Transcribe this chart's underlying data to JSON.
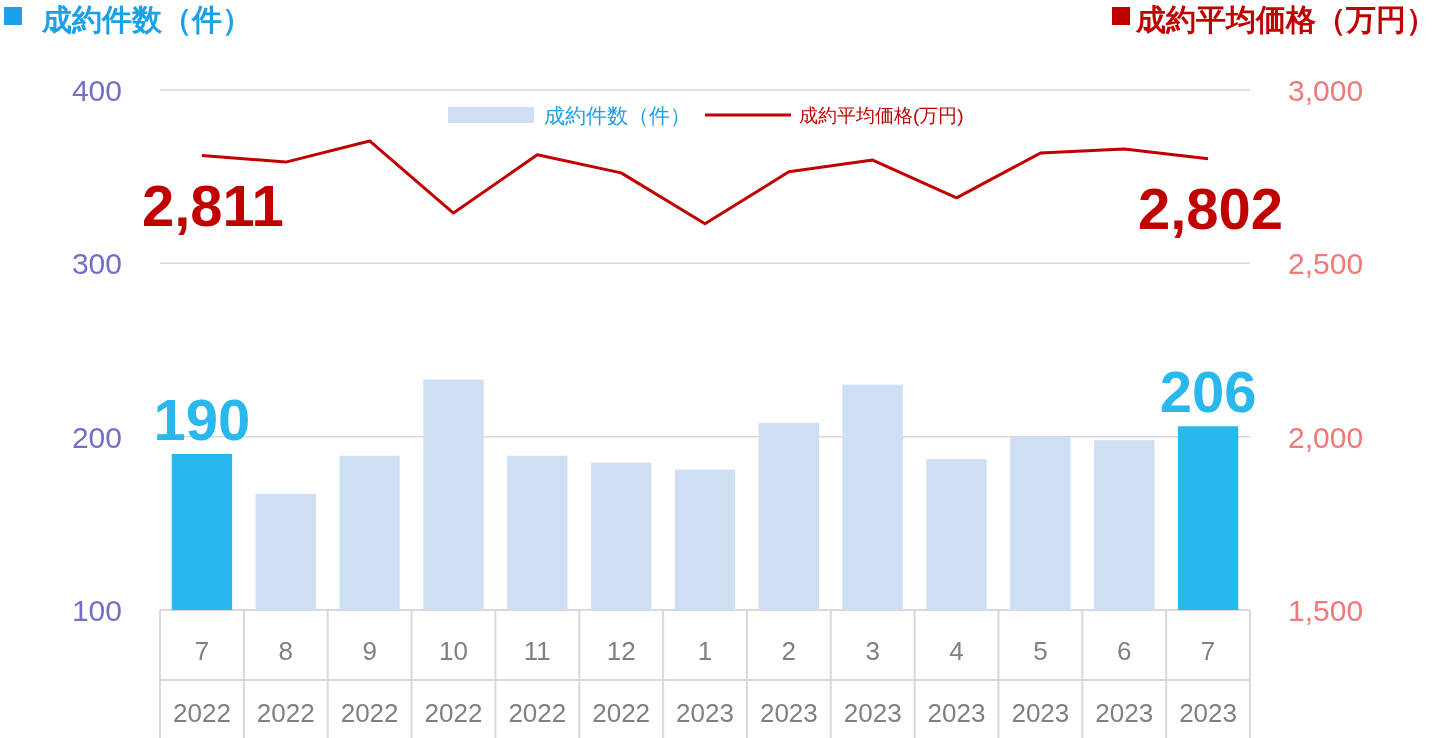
{
  "chart_data": {
    "type": "bar",
    "ylabel": "成約件数（件）",
    "y2label": "成約平均価格（万円）",
    "categories": [
      "7\n2022",
      "8\n2022",
      "9\n2022",
      "10\n2022",
      "11\n2022",
      "12\n2022",
      "1\n2023",
      "2\n2023",
      "3\n2023",
      "4\n2023",
      "5\n2023",
      "6\n2023",
      "7\n2023"
    ],
    "series": [
      {
        "name": "成約件数（件）",
        "color": "#cfdff3",
        "colors": [
          "#29b8ee",
          "#cfdff3",
          "#cfdff3",
          "#cfdff3",
          "#cfdff3",
          "#cfdff3",
          "#cfdff3",
          "#cfdff3",
          "#cfdff3",
          "#cfdff3",
          "#cfdff3",
          "#cfdff3",
          "#29b8ee"
        ],
        "values": [
          190,
          167,
          189,
          233,
          189,
          185,
          181,
          208,
          230,
          187,
          200,
          198,
          206
        ],
        "value_labels": [
          "190",
          null,
          null,
          null,
          null,
          null,
          null,
          null,
          null,
          null,
          null,
          null,
          "206"
        ]
      },
      {
        "name": "成約平均価格(万円)",
        "type": "line",
        "axis": "y2",
        "color": "#c00000",
        "values": [
          2811,
          2792,
          2853,
          2645,
          2813,
          2761,
          2614,
          2764,
          2798,
          2689,
          2818,
          2830,
          2802
        ],
        "value_labels": [
          "2,811",
          null,
          null,
          null,
          null,
          null,
          null,
          null,
          null,
          null,
          null,
          null,
          "2,802"
        ]
      }
    ],
    "ylim": [
      100,
      400
    ],
    "yticks": [
      100,
      200,
      300,
      400
    ],
    "y2lim": [
      1500,
      3000
    ],
    "y2ticks": [
      {
        "value": 1500,
        "label": "1,500"
      },
      {
        "value": 2000,
        "label": "2,000"
      },
      {
        "value": 2500,
        "label": "2,500"
      },
      {
        "value": 3000,
        "label": "3,000"
      }
    ],
    "grid": "y",
    "legend": "top"
  }
}
